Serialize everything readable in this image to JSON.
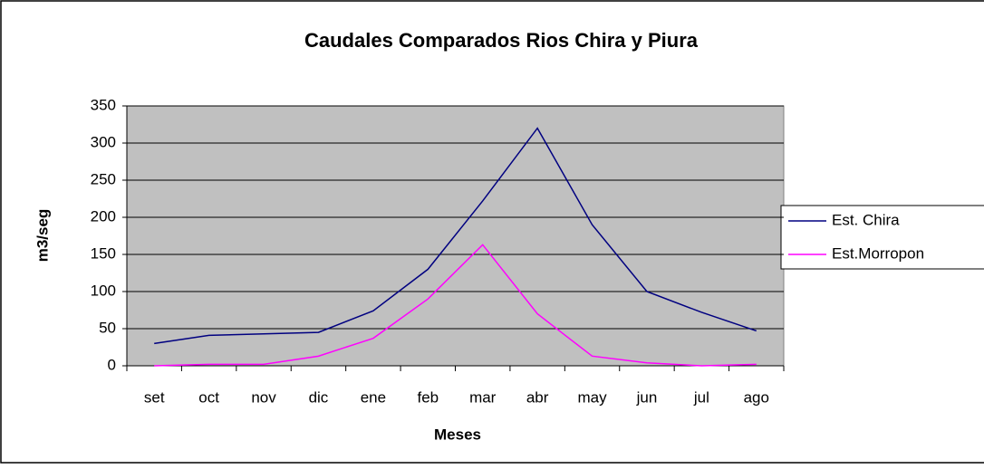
{
  "chart_data": {
    "type": "line",
    "title": "Caudales Comparados Rios Chira y Piura",
    "xlabel": "Meses",
    "ylabel": "m3/seg",
    "categories": [
      "set",
      "oct",
      "nov",
      "dic",
      "ene",
      "feb",
      "mar",
      "abr",
      "may",
      "jun",
      "jul",
      "ago"
    ],
    "series": [
      {
        "name": "Est. Chira",
        "color": "#000080",
        "values": [
          30,
          41,
          43,
          45,
          74,
          130,
          222,
          320,
          190,
          100,
          72,
          47
        ]
      },
      {
        "name": "Est.Morropon",
        "color": "#ff00ff",
        "values": [
          0,
          2,
          2,
          13,
          37,
          90,
          163,
          70,
          13,
          4,
          0,
          2
        ]
      }
    ],
    "ylim": [
      0,
      350
    ],
    "yticks": [
      0,
      50,
      100,
      150,
      200,
      250,
      300,
      350
    ],
    "grid": true,
    "legend": "right"
  }
}
